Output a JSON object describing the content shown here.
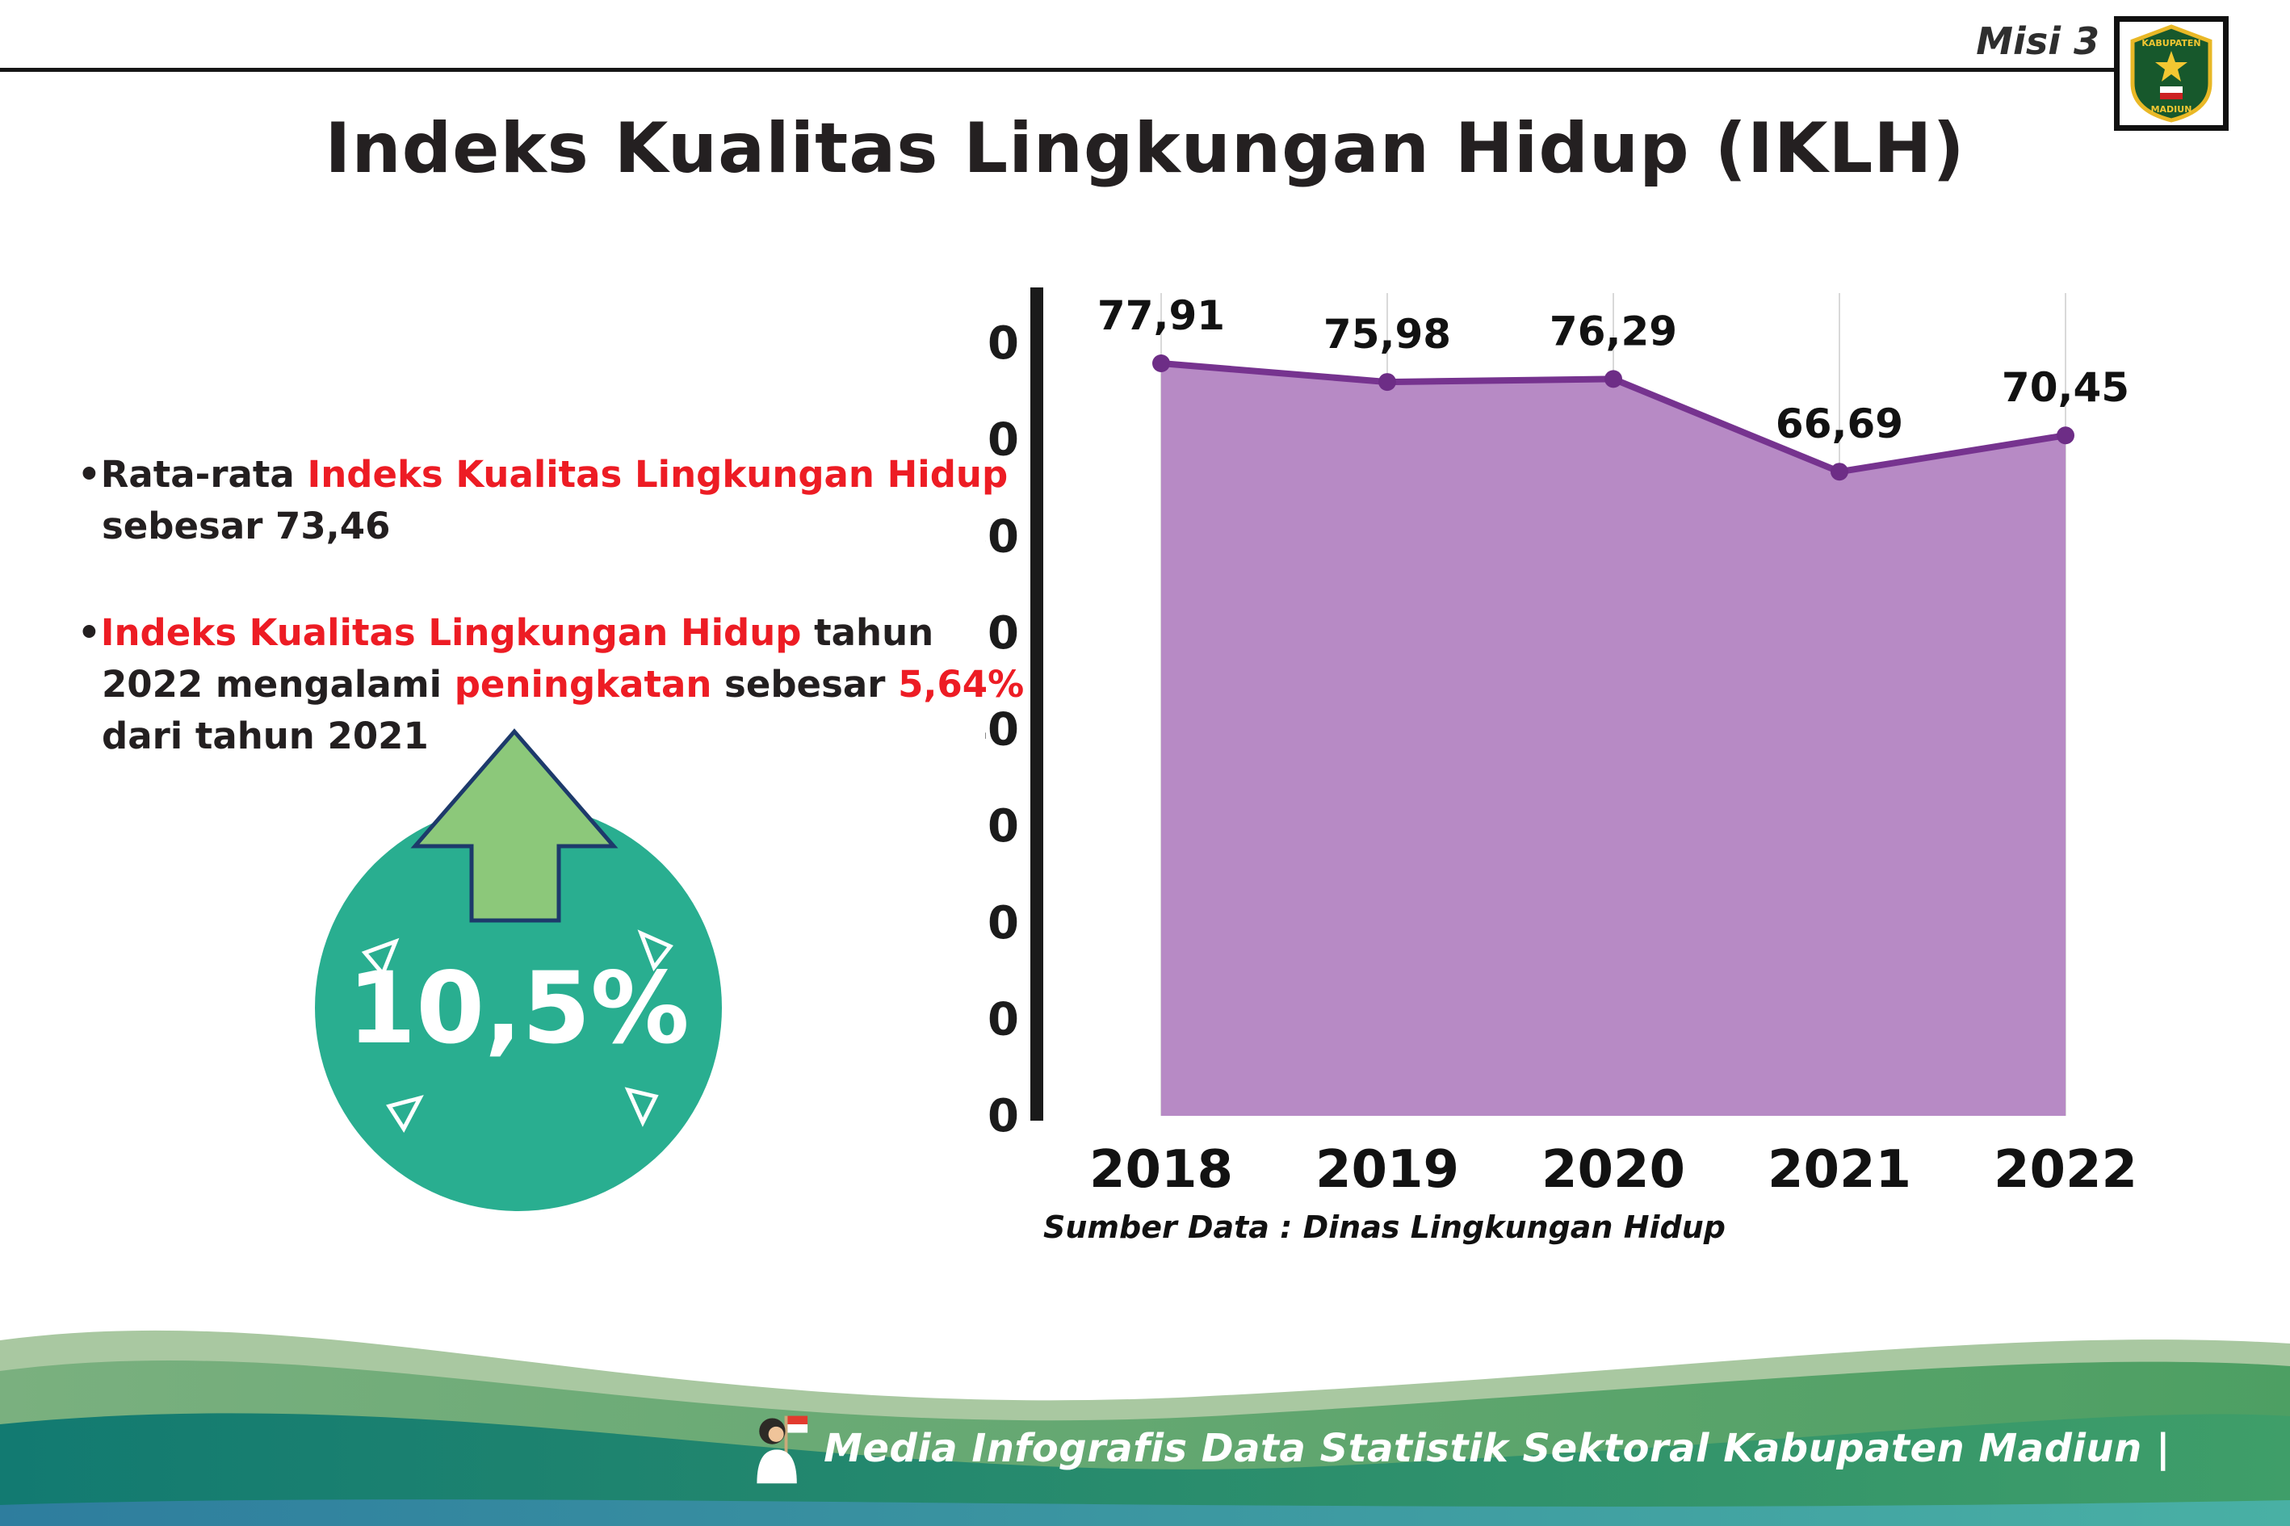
{
  "header": {
    "misi": "Misi 3",
    "logo": {
      "top": "KABUPATEN",
      "bottom": "MADIUN"
    }
  },
  "title": "Indeks Kualitas Lingkungan Hidup (IKLH)",
  "bullets": {
    "b1": {
      "bullet": "•",
      "part1": "Rata-rata ",
      "part2": "Indeks Kualitas Lingkungan Hidup",
      "part3": " sebesar 73,46"
    },
    "b2": {
      "bullet": "•",
      "part1": "Indeks Kualitas Lingkungan Hidup",
      "part2": " tahun 2022 mengalami ",
      "part3": "peningkatan",
      "part4": " sebesar ",
      "part5": "5,64%",
      "part6": " dari tahun 2021"
    }
  },
  "badge": {
    "value": "10,5%"
  },
  "chart_data": {
    "type": "area",
    "title": "",
    "categories": [
      "2018",
      "2019",
      "2020",
      "2021",
      "2022"
    ],
    "values": [
      77.91,
      75.98,
      76.29,
      66.69,
      70.45
    ],
    "value_labels": [
      "77,91",
      "75,98",
      "76,29",
      "66,69",
      "70,45"
    ],
    "ylim": [
      0,
      80
    ],
    "ytick_step": 10,
    "grid": "vertical-light",
    "legend": "none",
    "line_color": "#76338f",
    "fill_color": "#b78ac5",
    "point_color": "#6d2d86",
    "source": "Sumber Data : Dinas Lingkungan Hidup"
  },
  "footer": {
    "credit": "Media Infografis Data Statistik Sektoral Kabupaten Madiun |"
  },
  "colors": {
    "accent_red": "#ed1c24",
    "teal_badge": "#29ae90",
    "arrow_green": "#8cc87a",
    "text_dark": "#231f20"
  }
}
